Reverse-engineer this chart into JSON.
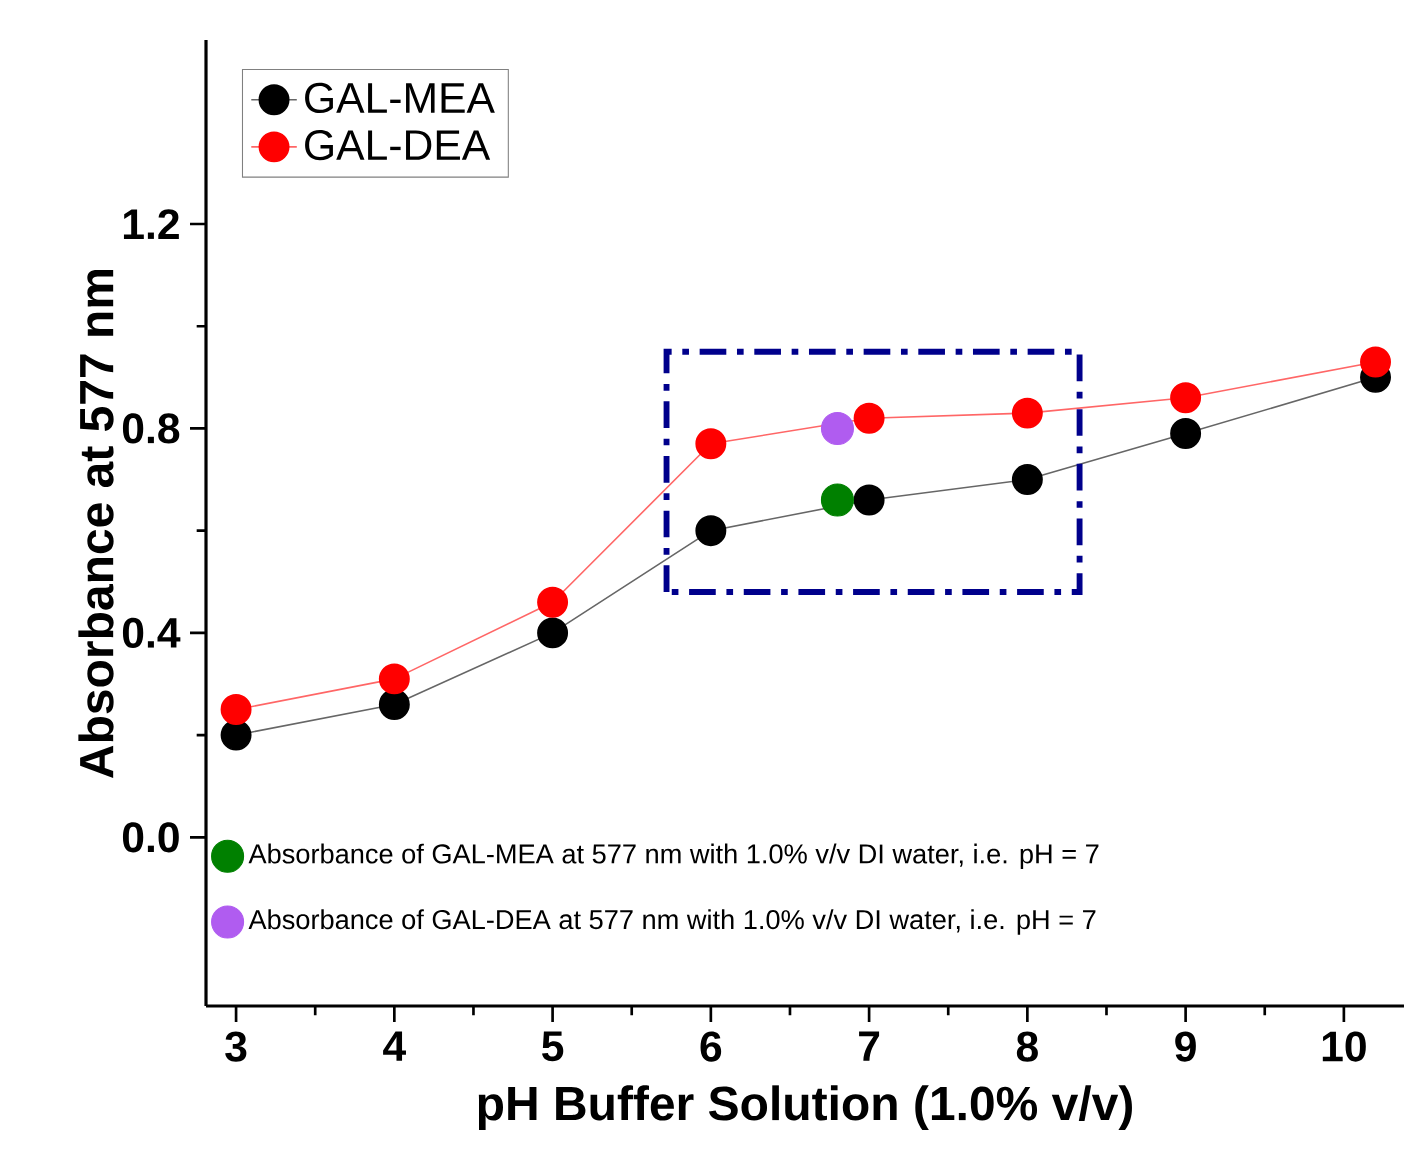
{
  "chart_data": {
    "type": "line",
    "xlabel": "pH Buffer Solution (1.0% v/v)",
    "ylabel": "Absorbance at 577 nm",
    "xlim": [
      2.81,
      10.38
    ],
    "ylim": [
      -0.33,
      1.56
    ],
    "xticks": [
      3,
      4,
      5,
      6,
      7,
      8,
      9,
      10
    ],
    "yticks": [
      {
        "value": 0,
        "label": "0.0"
      },
      {
        "value": 0.4,
        "label": "0.4"
      },
      {
        "value": 0.8,
        "label": "0.8"
      },
      {
        "value": 1.2,
        "label": "1.2"
      }
    ],
    "x": [
      3,
      4,
      5,
      6,
      7,
      8,
      9,
      10.2
    ],
    "marker": "circle",
    "line_style": "solid",
    "legend": "top left",
    "grid": false,
    "series": [
      {
        "name": "GAL-MEA",
        "color": "#000000",
        "values": [
          0.2,
          0.26,
          0.4,
          0.6,
          0.66,
          0.7,
          0.79,
          0.9
        ]
      },
      {
        "name": "GAL-DEA",
        "color": "#ff0000",
        "values": [
          0.25,
          0.31,
          0.46,
          0.77,
          0.82,
          0.83,
          0.86,
          0.93
        ]
      },
      {
        "name": "Absorbance of GAL-MEA at 577 nm with 1.0% v/v DI water, i.e. pH = 7",
        "type": "scatter",
        "color": "#008000",
        "x": [
          6.8
        ],
        "values": [
          0.66
        ]
      },
      {
        "name": "Absorbance of GAL-DEA at 577 nm with 1.0% v/v DI water, i.e. pH = 7",
        "type": "scatter",
        "color": "#b05cf0",
        "x": [
          6.8
        ],
        "values": [
          0.8
        ]
      }
    ]
  }
}
